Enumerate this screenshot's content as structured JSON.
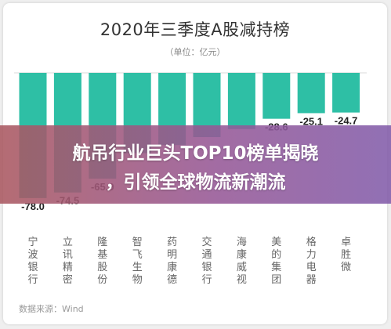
{
  "chart_data": {
    "type": "bar",
    "title": "2020年三季度A股减持榜",
    "subtitle": "（单位：亿元）",
    "source": "数据来源：Wind",
    "categories": [
      "宁波银行",
      "立讯精密",
      "隆基股份",
      "智飞生物",
      "药明康德",
      "交通银行",
      "海康威视",
      "美的集团",
      "格力电器",
      "卓胜微"
    ],
    "values": [
      -78.0,
      -74.5,
      -65.9,
      -50.0,
      -45.0,
      -40.0,
      -35.0,
      -28.6,
      -25.1,
      -24.7
    ],
    "value_labels": [
      "-78.0",
      "-74.5",
      "-65.9",
      "",
      "",
      "",
      "",
      "-28.6",
      "-25.1",
      "-24.7"
    ],
    "ylim": [
      -80,
      0
    ],
    "bar_color": "#2ebfa5",
    "grid": false
  },
  "banner": {
    "line1": "航吊行业巨头TOP10榜单揭晓",
    "line2": "，引领全球物流新潮流"
  }
}
